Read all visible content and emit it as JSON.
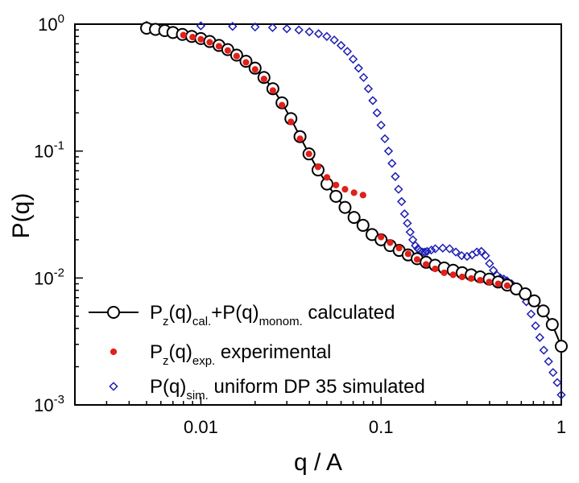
{
  "chart_data": {
    "type": "scatter",
    "xlabel": "q / A",
    "ylabel": "P(q)",
    "xscale": "log",
    "yscale": "log",
    "xlim": [
      0.002,
      1.0
    ],
    "ylim": [
      0.001,
      1.0
    ],
    "grid": false,
    "legend_position": "bottom-left",
    "x_tick_labels": [
      "0.01",
      "0.1",
      "1"
    ],
    "y_tick_labels": [
      {
        "base": "10",
        "exp": "0"
      },
      {
        "base": "10",
        "exp": "-1"
      },
      {
        "base": "10",
        "exp": "-2"
      },
      {
        "base": "10",
        "exp": "-3"
      }
    ],
    "series": [
      {
        "name": "P_z(q)_cal.+P(q)_monom. calculated",
        "label_parts": [
          {
            "text": "P"
          },
          {
            "text": "z",
            "sub": true
          },
          {
            "text": "(q)"
          },
          {
            "text": "cal.",
            "sub": true
          },
          {
            "text": "+P(q)"
          },
          {
            "text": "monom.",
            "sub": true
          },
          {
            "text": " calculated"
          }
        ],
        "style": "line-circle",
        "color": "#000000",
        "x": [
          0.005,
          0.0056,
          0.0063,
          0.007,
          0.0079,
          0.0089,
          0.01,
          0.0112,
          0.0126,
          0.0141,
          0.0158,
          0.0178,
          0.02,
          0.0224,
          0.0251,
          0.0282,
          0.0316,
          0.0355,
          0.0398,
          0.0447,
          0.0501,
          0.0562,
          0.0631,
          0.0708,
          0.0794,
          0.0891,
          0.1,
          0.1122,
          0.1259,
          0.1413,
          0.1585,
          0.1778,
          0.1995,
          0.2239,
          0.2512,
          0.2818,
          0.3162,
          0.3548,
          0.3981,
          0.4467,
          0.5012,
          0.5623,
          0.631,
          0.7079,
          0.7943,
          0.8913,
          1.0
        ],
        "y": [
          0.93,
          0.91,
          0.89,
          0.86,
          0.83,
          0.8,
          0.77,
          0.73,
          0.68,
          0.63,
          0.57,
          0.51,
          0.45,
          0.38,
          0.31,
          0.24,
          0.18,
          0.13,
          0.095,
          0.071,
          0.055,
          0.044,
          0.036,
          0.03,
          0.026,
          0.022,
          0.02,
          0.018,
          0.0165,
          0.0152,
          0.0142,
          0.0133,
          0.0126,
          0.012,
          0.0115,
          0.011,
          0.0106,
          0.0102,
          0.0098,
          0.0093,
          0.0088,
          0.0082,
          0.0075,
          0.0066,
          0.0055,
          0.0043,
          0.0029
        ]
      },
      {
        "name": "P_z(q)_exp. experimental",
        "label_parts": [
          {
            "text": "P"
          },
          {
            "text": "z",
            "sub": true
          },
          {
            "text": "(q)"
          },
          {
            "text": "exp.",
            "sub": true
          },
          {
            "text": " experimental"
          }
        ],
        "style": "dot",
        "color": "#e0201b",
        "x": [
          0.008,
          0.009,
          0.01,
          0.0112,
          0.0126,
          0.0141,
          0.0158,
          0.0178,
          0.02,
          0.0224,
          0.0251,
          0.0282,
          0.0316,
          0.0355,
          0.0398,
          0.0447,
          0.0501,
          0.0562,
          0.0631,
          0.0708,
          0.0794,
          0.1,
          0.1122,
          0.1259,
          0.1413,
          0.1585,
          0.1778,
          0.1995,
          0.2239,
          0.2512,
          0.2818,
          0.3162,
          0.3548,
          0.3981,
          0.4467,
          0.5012
        ],
        "y": [
          0.82,
          0.79,
          0.76,
          0.72,
          0.67,
          0.62,
          0.56,
          0.5,
          0.44,
          0.37,
          0.3,
          0.23,
          0.17,
          0.125,
          0.095,
          0.075,
          0.062,
          0.054,
          0.05,
          0.047,
          0.045,
          0.021,
          0.019,
          0.0172,
          0.0155,
          0.014,
          0.0128,
          0.0118,
          0.011,
          0.0106,
          0.0102,
          0.0099,
          0.0096,
          0.0093,
          0.009,
          0.0087
        ]
      },
      {
        "name": "P(q)_sim. uniform DP 35 simulated",
        "label_parts": [
          {
            "text": "P(q)"
          },
          {
            "text": "sim.",
            "sub": true
          },
          {
            "text": " uniform DP 35 simulated"
          }
        ],
        "style": "open-diamond",
        "color": "#1c1cb4",
        "x": [
          0.005,
          0.01,
          0.015,
          0.02,
          0.025,
          0.03,
          0.035,
          0.04,
          0.045,
          0.05,
          0.055,
          0.06,
          0.065,
          0.07,
          0.075,
          0.08,
          0.085,
          0.09,
          0.095,
          0.1,
          0.105,
          0.11,
          0.115,
          0.12,
          0.125,
          0.13,
          0.135,
          0.14,
          0.145,
          0.15,
          0.155,
          0.16,
          0.165,
          0.17,
          0.175,
          0.18,
          0.19,
          0.2,
          0.22,
          0.24,
          0.26,
          0.28,
          0.3,
          0.32,
          0.34,
          0.36,
          0.38,
          0.4,
          0.42,
          0.44,
          0.46,
          0.48,
          0.5,
          0.53,
          0.56,
          0.6,
          0.64,
          0.68,
          0.72,
          0.76,
          0.8,
          0.85,
          0.9,
          0.95,
          1.0
        ],
        "y": [
          0.98,
          0.97,
          0.96,
          0.95,
          0.94,
          0.92,
          0.9,
          0.87,
          0.84,
          0.8,
          0.75,
          0.68,
          0.61,
          0.53,
          0.45,
          0.38,
          0.31,
          0.25,
          0.2,
          0.16,
          0.125,
          0.1,
          0.08,
          0.063,
          0.05,
          0.04,
          0.032,
          0.027,
          0.023,
          0.02,
          0.018,
          0.017,
          0.0163,
          0.016,
          0.016,
          0.0162,
          0.0166,
          0.017,
          0.0172,
          0.017,
          0.016,
          0.015,
          0.0148,
          0.0152,
          0.016,
          0.0162,
          0.015,
          0.013,
          0.0115,
          0.0105,
          0.01,
          0.0098,
          0.0095,
          0.009,
          0.0085,
          0.0078,
          0.0065,
          0.0052,
          0.0042,
          0.0034,
          0.0027,
          0.0022,
          0.0018,
          0.0015,
          0.0012
        ]
      }
    ]
  }
}
